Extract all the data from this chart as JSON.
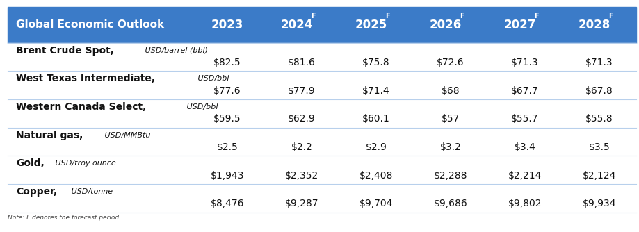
{
  "title": "Global Economic Outlook",
  "col_years": [
    "2023",
    "2024F",
    "2025F",
    "2026F",
    "2027F",
    "2028F"
  ],
  "header_bg": "#3B7BC8",
  "header_text_color": "#FFFFFF",
  "row_bg_white": "#FFFFFF",
  "divider_color": "#B8D0EC",
  "text_color": "#111111",
  "note_text": "Note: F denotes the forecast period.",
  "rows": [
    {
      "label_bold": "Brent Crude Spot,",
      "label_italic": " USD/barrel (bbl)",
      "values": [
        "$82.5",
        "$81.6",
        "$75.8",
        "$72.6",
        "$71.3",
        "$71.3"
      ]
    },
    {
      "label_bold": "West Texas Intermediate,",
      "label_italic": " USD/bbl",
      "values": [
        "$77.6",
        "$77.9",
        "$71.4",
        "$68",
        "$67.7",
        "$67.8"
      ]
    },
    {
      "label_bold": "Western Canada Select,",
      "label_italic": " USD/bbl",
      "values": [
        "$59.5",
        "$62.9",
        "$60.1",
        "$57",
        "$55.7",
        "$55.8"
      ]
    },
    {
      "label_bold": "Natural gas,",
      "label_italic": " USD/MMBtu",
      "values": [
        "$2.5",
        "$2.2",
        "$2.9",
        "$3.2",
        "$3.4",
        "$3.5"
      ]
    },
    {
      "label_bold": "Gold,",
      "label_italic": " USD/troy ounce",
      "values": [
        "$1,943",
        "$2,352",
        "$2,408",
        "$2,288",
        "$2,214",
        "$2,124"
      ]
    },
    {
      "label_bold": "Copper,",
      "label_italic": " USD/tonne",
      "values": [
        "$8,476",
        "$9,287",
        "$9,704",
        "$9,686",
        "$9,802",
        "$9,934"
      ]
    }
  ]
}
